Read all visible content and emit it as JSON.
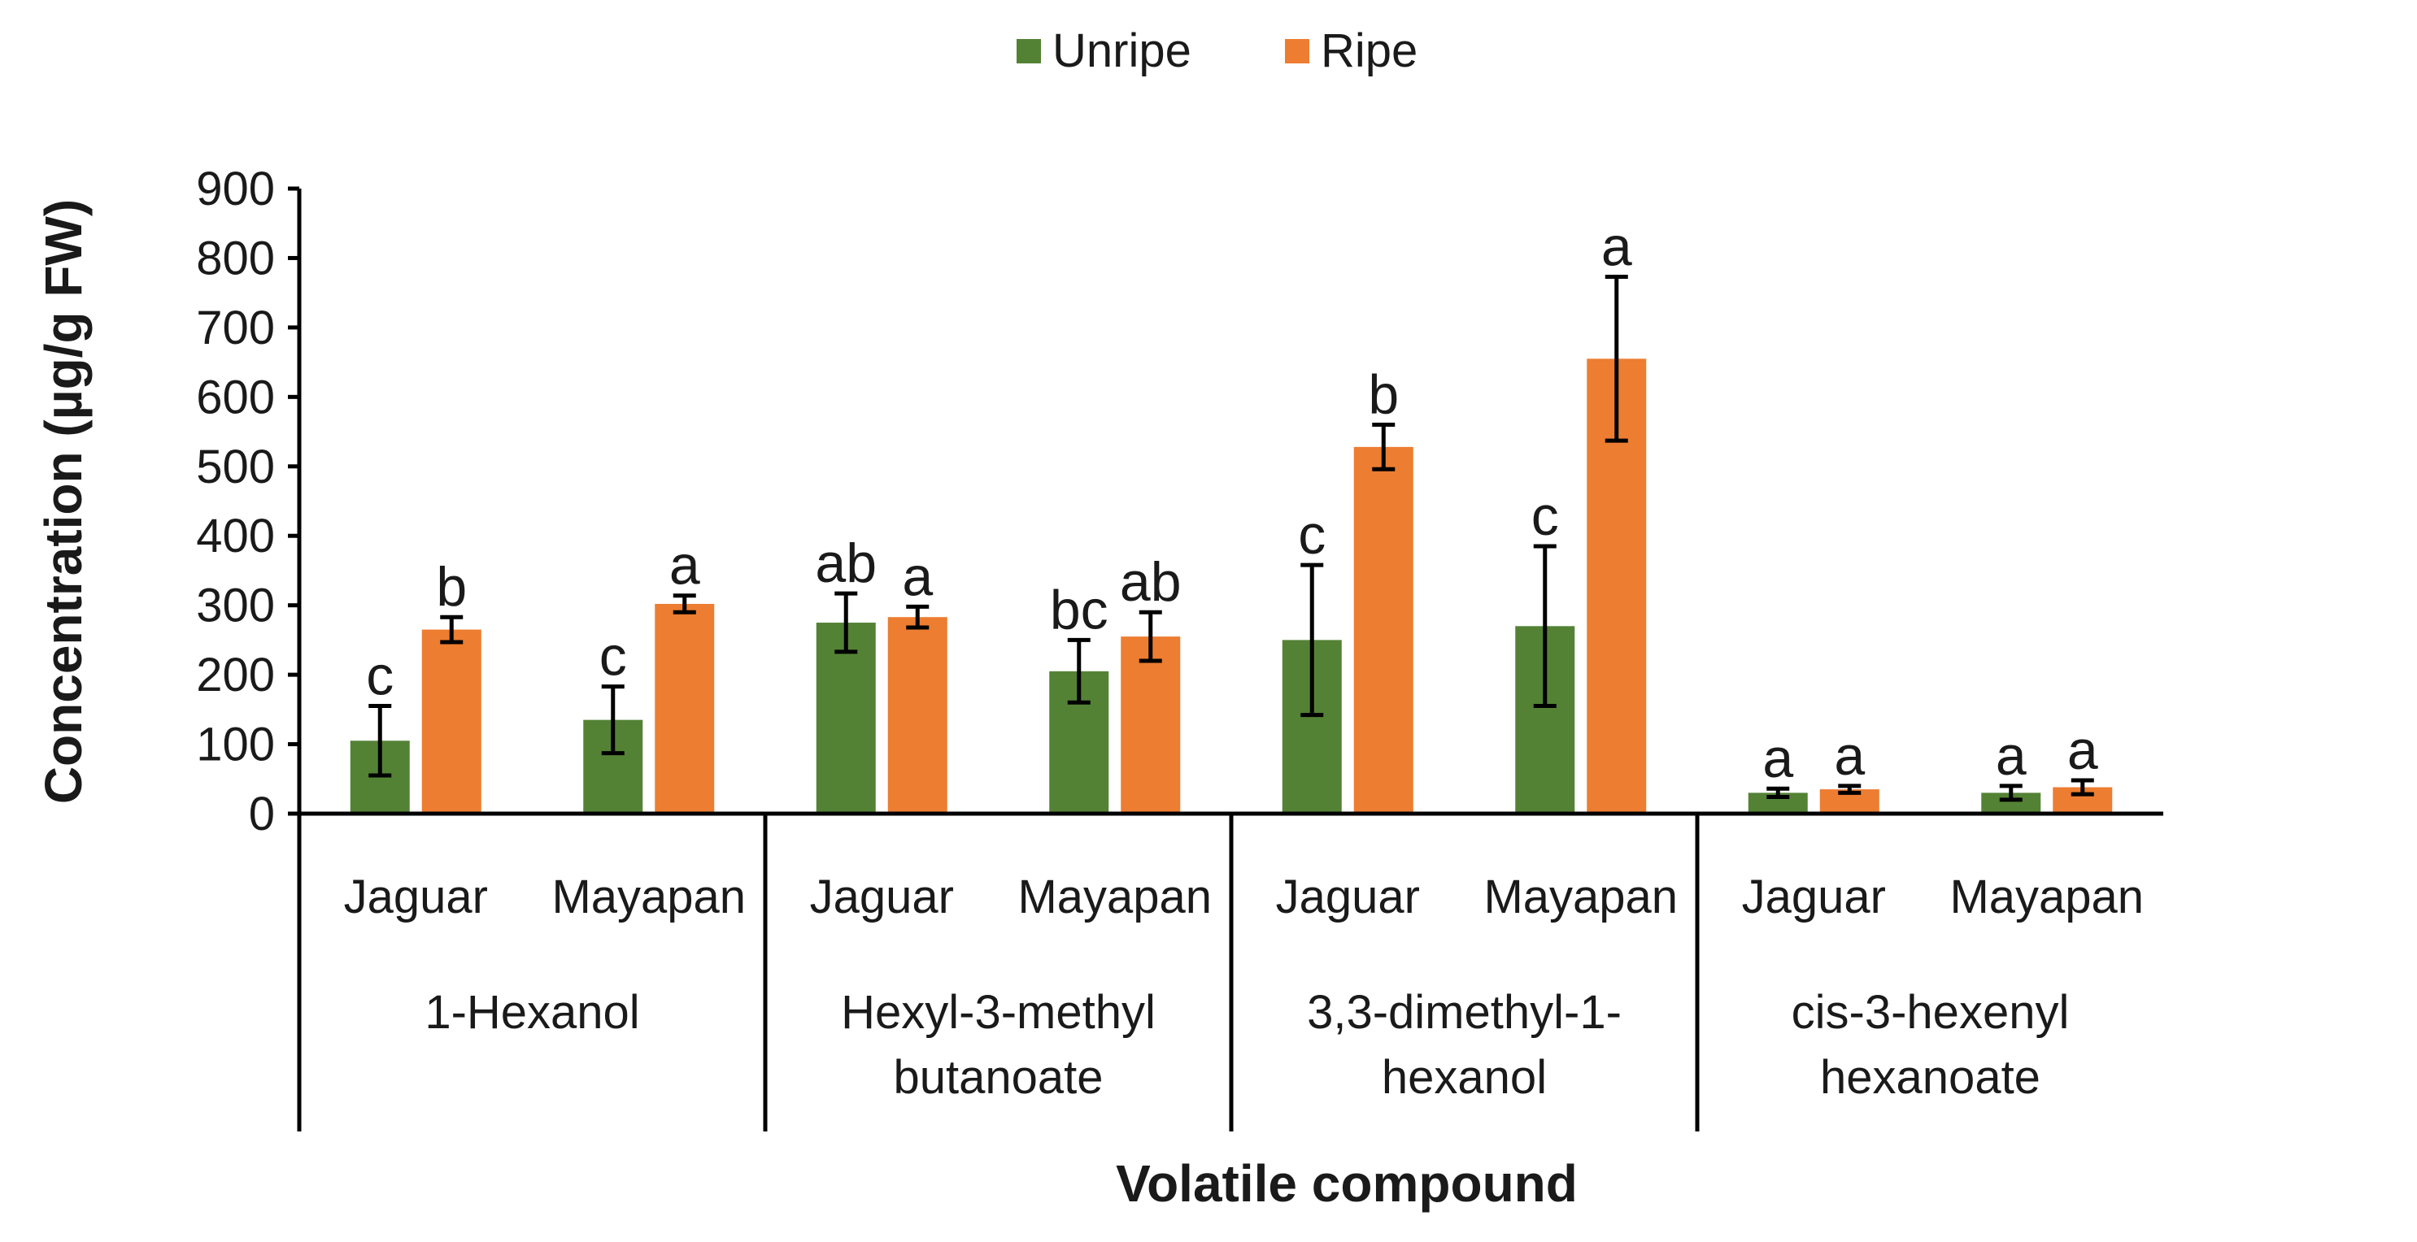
{
  "chart_data": {
    "type": "bar",
    "xlabel": "Volatile compound",
    "ylabel": "Concentration (µg/g FW)",
    "ylim": [
      0,
      900
    ],
    "y_ticks": [
      0,
      100,
      200,
      300,
      400,
      500,
      600,
      700,
      800,
      900
    ],
    "grid": false,
    "legend_position": "top-center",
    "groups": [
      {
        "label": "1-Hexanol",
        "lines": [
          "1-Hexanol"
        ]
      },
      {
        "label": "Hexyl-3-methyl butanoate",
        "lines": [
          "Hexyl-3-methyl",
          "butanoate"
        ]
      },
      {
        "label": "3,3-dimethyl-1-hexanol",
        "lines": [
          "3,3-dimethyl-1-",
          "hexanol"
        ]
      },
      {
        "label": "cis-3-hexenyl hexanoate",
        "lines": [
          "cis-3-hexenyl",
          "hexanoate"
        ]
      }
    ],
    "categories": [
      "Jaguar",
      "Mayapan",
      "Jaguar",
      "Mayapan",
      "Jaguar",
      "Mayapan",
      "Jaguar",
      "Mayapan"
    ],
    "series": [
      {
        "name": "Unripe",
        "color": "#548235",
        "values": [
          105,
          135,
          275,
          205,
          250,
          270,
          30,
          30
        ],
        "errors": [
          50,
          48,
          42,
          45,
          108,
          115,
          6,
          10
        ],
        "letters": [
          "c",
          "c",
          "ab",
          "bc",
          "c",
          "c",
          "a",
          "a"
        ]
      },
      {
        "name": "Ripe",
        "color": "#ED7D31",
        "values": [
          265,
          302,
          283,
          255,
          528,
          655,
          35,
          38
        ],
        "errors": [
          18,
          12,
          15,
          35,
          32,
          118,
          5,
          10
        ],
        "letters": [
          "b",
          "a",
          "a",
          "ab",
          "b",
          "a",
          "a",
          "a"
        ]
      }
    ]
  }
}
